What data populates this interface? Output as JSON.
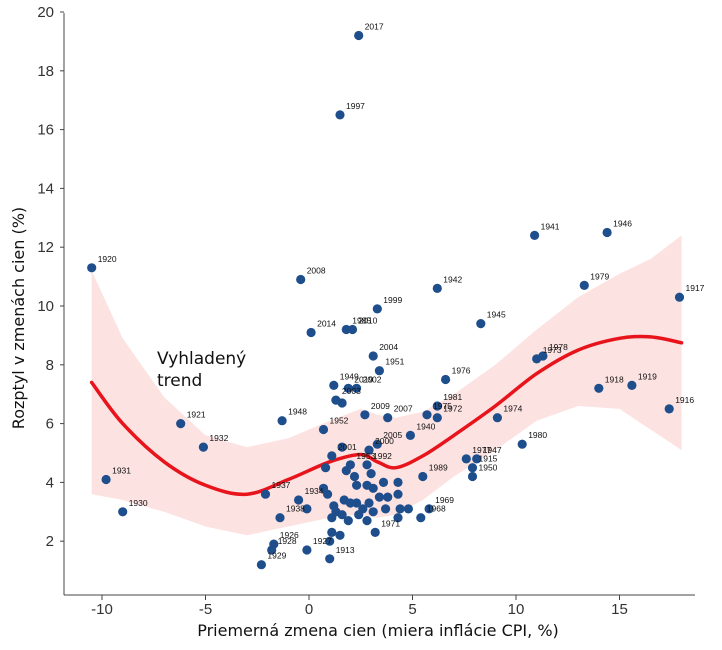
{
  "chart_data": {
    "type": "scatter",
    "title": "",
    "xlabel": "Priemerná zmena cien (miera inflácie CPI, %)",
    "ylabel": "Rozptyl v zmenách cien (%)",
    "xlim": [
      -11.5,
      18.5
    ],
    "ylim": [
      0,
      20
    ],
    "xticks": [
      -10,
      -5,
      0,
      5,
      10,
      15
    ],
    "yticks": [
      2,
      4,
      6,
      8,
      10,
      12,
      14,
      16,
      18,
      20
    ],
    "grid": false,
    "colors": {
      "points": "#1f4e8c",
      "trend": "#e8141b",
      "band": "#fde2e2"
    },
    "points": [
      {
        "x": 2.4,
        "y": 19.2,
        "label": "2017"
      },
      {
        "x": 1.5,
        "y": 16.5,
        "label": "1997"
      },
      {
        "x": 10.9,
        "y": 12.4,
        "label": "1941"
      },
      {
        "x": 14.4,
        "y": 12.5,
        "label": "1946"
      },
      {
        "x": -10.5,
        "y": 11.3,
        "label": "1920"
      },
      {
        "x": -0.4,
        "y": 10.9,
        "label": "2008"
      },
      {
        "x": 6.2,
        "y": 10.6,
        "label": "1942"
      },
      {
        "x": 13.3,
        "y": 10.7,
        "label": "1979"
      },
      {
        "x": 17.9,
        "y": 10.3,
        "label": "1917"
      },
      {
        "x": 3.3,
        "y": 9.9,
        "label": "1999"
      },
      {
        "x": 8.3,
        "y": 9.4,
        "label": "1945"
      },
      {
        "x": 0.1,
        "y": 9.1,
        "label": "2014"
      },
      {
        "x": 1.8,
        "y": 9.2,
        "label": "1985"
      },
      {
        "x": 2.1,
        "y": 9.2,
        "label": "2010"
      },
      {
        "x": 3.1,
        "y": 8.3,
        "label": "2004"
      },
      {
        "x": 11.3,
        "y": 8.3,
        "label": "1978"
      },
      {
        "x": 11.0,
        "y": 8.2,
        "label": "1973"
      },
      {
        "x": 6.6,
        "y": 7.5,
        "label": "1976"
      },
      {
        "x": 3.4,
        "y": 7.8,
        "label": "1951"
      },
      {
        "x": 1.2,
        "y": 7.3,
        "label": "1949"
      },
      {
        "x": 1.9,
        "y": 7.2,
        "label": "2019"
      },
      {
        "x": 2.3,
        "y": 7.2,
        "label": "2002"
      },
      {
        "x": 1.3,
        "y": 6.8,
        "label": "2003"
      },
      {
        "x": 1.6,
        "y": 6.7,
        "label": ""
      },
      {
        "x": 6.2,
        "y": 6.6,
        "label": "1981"
      },
      {
        "x": 3.8,
        "y": 6.2,
        "label": "2007"
      },
      {
        "x": 5.7,
        "y": 6.3,
        "label": "1975"
      },
      {
        "x": 6.2,
        "y": 6.2,
        "label": "1972"
      },
      {
        "x": 9.1,
        "y": 6.2,
        "label": "1974"
      },
      {
        "x": 2.7,
        "y": 6.3,
        "label": "2009"
      },
      {
        "x": -1.3,
        "y": 6.1,
        "label": "1948"
      },
      {
        "x": 0.7,
        "y": 5.8,
        "label": "1952"
      },
      {
        "x": -6.2,
        "y": 6.0,
        "label": "1921"
      },
      {
        "x": -5.1,
        "y": 5.2,
        "label": "1932"
      },
      {
        "x": 3.3,
        "y": 5.3,
        "label": "2005"
      },
      {
        "x": 2.9,
        "y": 5.1,
        "label": "2000"
      },
      {
        "x": 1.6,
        "y": 5.2,
        "label": ""
      },
      {
        "x": 4.9,
        "y": 5.6,
        "label": "1940"
      },
      {
        "x": 10.3,
        "y": 5.3,
        "label": "1980"
      },
      {
        "x": 17.4,
        "y": 6.5,
        "label": "1916"
      },
      {
        "x": 15.6,
        "y": 7.3,
        "label": "1919"
      },
      {
        "x": 14.0,
        "y": 7.2,
        "label": "1918"
      },
      {
        "x": 7.6,
        "y": 4.8,
        "label": "1977"
      },
      {
        "x": 8.1,
        "y": 4.8,
        "label": "1947"
      },
      {
        "x": 7.9,
        "y": 4.5,
        "label": "1915"
      },
      {
        "x": 7.9,
        "y": 4.2,
        "label": "1950"
      },
      {
        "x": 5.5,
        "y": 4.2,
        "label": "1989"
      },
      {
        "x": 1.1,
        "y": 4.9,
        "label": "2001"
      },
      {
        "x": 2.0,
        "y": 4.6,
        "label": "1953"
      },
      {
        "x": 2.8,
        "y": 4.6,
        "label": "1992"
      },
      {
        "x": 0.8,
        "y": 4.5,
        "label": ""
      },
      {
        "x": 1.8,
        "y": 4.4,
        "label": ""
      },
      {
        "x": 3.0,
        "y": 4.3,
        "label": ""
      },
      {
        "x": 2.2,
        "y": 4.2,
        "label": ""
      },
      {
        "x": 3.6,
        "y": 4.0,
        "label": ""
      },
      {
        "x": 4.3,
        "y": 4.0,
        "label": ""
      },
      {
        "x": 2.8,
        "y": 3.9,
        "label": ""
      },
      {
        "x": 2.3,
        "y": 3.9,
        "label": ""
      },
      {
        "x": 3.1,
        "y": 3.8,
        "label": ""
      },
      {
        "x": 0.7,
        "y": 3.8,
        "label": ""
      },
      {
        "x": -2.1,
        "y": 3.6,
        "label": "1937"
      },
      {
        "x": -0.5,
        "y": 3.4,
        "label": "1934"
      },
      {
        "x": 0.9,
        "y": 3.6,
        "label": ""
      },
      {
        "x": 1.7,
        "y": 3.4,
        "label": ""
      },
      {
        "x": 2.3,
        "y": 3.3,
        "label": ""
      },
      {
        "x": 2.9,
        "y": 3.3,
        "label": ""
      },
      {
        "x": 3.4,
        "y": 3.5,
        "label": ""
      },
      {
        "x": 3.8,
        "y": 3.5,
        "label": ""
      },
      {
        "x": 4.3,
        "y": 3.6,
        "label": ""
      },
      {
        "x": 1.2,
        "y": 3.2,
        "label": ""
      },
      {
        "x": 2.0,
        "y": 3.3,
        "label": ""
      },
      {
        "x": 2.6,
        "y": 3.1,
        "label": ""
      },
      {
        "x": 3.1,
        "y": 3.0,
        "label": ""
      },
      {
        "x": 3.7,
        "y": 3.1,
        "label": ""
      },
      {
        "x": 4.4,
        "y": 3.1,
        "label": ""
      },
      {
        "x": 4.8,
        "y": 3.1,
        "label": ""
      },
      {
        "x": 5.8,
        "y": 3.1,
        "label": "1969"
      },
      {
        "x": -0.1,
        "y": 3.1,
        "label": ""
      },
      {
        "x": 1.3,
        "y": 3.0,
        "label": ""
      },
      {
        "x": 1.6,
        "y": 2.9,
        "label": ""
      },
      {
        "x": 2.4,
        "y": 2.9,
        "label": ""
      },
      {
        "x": 1.1,
        "y": 2.8,
        "label": ""
      },
      {
        "x": 1.9,
        "y": 2.7,
        "label": ""
      },
      {
        "x": 2.8,
        "y": 2.7,
        "label": ""
      },
      {
        "x": 4.3,
        "y": 2.8,
        "label": ""
      },
      {
        "x": 5.4,
        "y": 2.8,
        "label": "1968"
      },
      {
        "x": -1.4,
        "y": 2.8,
        "label": "1938"
      },
      {
        "x": 1.1,
        "y": 2.3,
        "label": ""
      },
      {
        "x": 1.5,
        "y": 2.2,
        "label": ""
      },
      {
        "x": 3.2,
        "y": 2.3,
        "label": "1971"
      },
      {
        "x": 1.0,
        "y": 2.0,
        "label": ""
      },
      {
        "x": -1.7,
        "y": 1.9,
        "label": "1926"
      },
      {
        "x": -1.8,
        "y": 1.7,
        "label": "1928"
      },
      {
        "x": -0.1,
        "y": 1.7,
        "label": "1927"
      },
      {
        "x": 1.0,
        "y": 1.4,
        "label": "1913"
      },
      {
        "x": -2.3,
        "y": 1.2,
        "label": "1929"
      },
      {
        "x": -9.8,
        "y": 4.1,
        "label": "1931"
      },
      {
        "x": -9.0,
        "y": 3.0,
        "label": "1930"
      }
    ],
    "trend_label": "Vyhladený trend",
    "trend_label_lines": [
      "Vyhladený",
      "trend"
    ],
    "trend": {
      "x": [
        -10.5,
        -9,
        -7,
        -5,
        -3,
        -1,
        1,
        2.5,
        3.3,
        4.2,
        5.5,
        7,
        9,
        11,
        13,
        15,
        16.5,
        18
      ],
      "y": [
        7.4,
        6.0,
        4.7,
        3.9,
        3.6,
        4.1,
        4.7,
        4.95,
        4.7,
        4.5,
        4.9,
        5.6,
        6.6,
        7.7,
        8.5,
        8.9,
        8.95,
        8.75
      ],
      "lo": [
        3.6,
        3.4,
        3.0,
        2.5,
        2.2,
        2.5,
        2.8,
        2.9,
        2.8,
        2.9,
        3.4,
        4.2,
        5.1,
        6.1,
        6.6,
        6.5,
        5.8,
        5.1
      ],
      "hi": [
        11.2,
        8.9,
        6.9,
        5.6,
        5.2,
        5.5,
        6.1,
        6.5,
        6.3,
        6.2,
        6.4,
        7.0,
        8.0,
        9.2,
        10.3,
        11.1,
        11.6,
        12.4
      ]
    }
  }
}
